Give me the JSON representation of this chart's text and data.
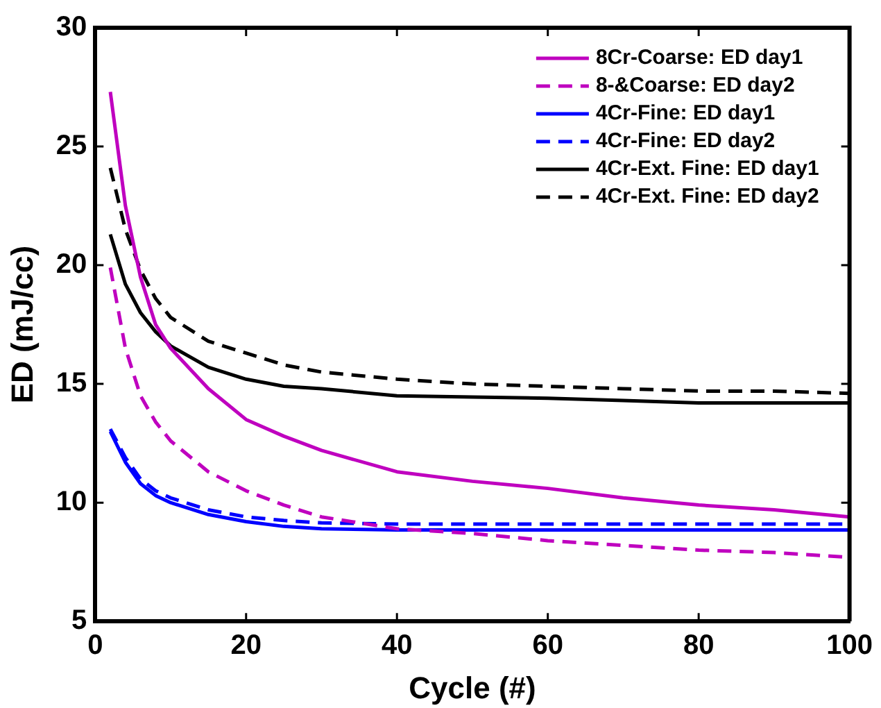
{
  "chart_data": {
    "type": "line",
    "xlabel": "Cycle (#)",
    "ylabel": "ED (mJ/cc)",
    "x": [
      2,
      4,
      6,
      8,
      10,
      15,
      20,
      25,
      30,
      40,
      50,
      60,
      70,
      80,
      90,
      100
    ],
    "series": [
      {
        "name": "8Cr-Coarse: ED day1",
        "color": "#bf00bf",
        "line_style": "solid",
        "values": [
          27.3,
          22.5,
          19.5,
          17.5,
          16.5,
          14.8,
          13.5,
          12.8,
          12.2,
          11.3,
          10.9,
          10.6,
          10.2,
          9.9,
          9.7,
          9.4
        ]
      },
      {
        "name": "8-&Coarse: ED day2",
        "color": "#bf00bf",
        "line_style": "dashed",
        "values": [
          19.9,
          16.5,
          14.5,
          13.4,
          12.6,
          11.3,
          10.5,
          9.9,
          9.4,
          8.9,
          8.7,
          8.4,
          8.2,
          8.0,
          7.9,
          7.7
        ]
      },
      {
        "name": "4Cr-Fine: ED day1",
        "color": "#0000ff",
        "line_style": "solid",
        "values": [
          13.0,
          11.7,
          10.8,
          10.3,
          10.0,
          9.5,
          9.2,
          9.0,
          8.9,
          8.85,
          8.85,
          8.85,
          8.85,
          8.85,
          8.85,
          8.85
        ]
      },
      {
        "name": "4Cr-Fine: ED day2",
        "color": "#0000ff",
        "line_style": "dashed",
        "values": [
          13.1,
          11.9,
          11.0,
          10.5,
          10.2,
          9.7,
          9.4,
          9.25,
          9.15,
          9.1,
          9.1,
          9.1,
          9.1,
          9.1,
          9.1,
          9.1
        ]
      },
      {
        "name": "4Cr-Ext. Fine: ED day1",
        "color": "#000000",
        "line_style": "solid",
        "values": [
          21.3,
          19.2,
          18.0,
          17.2,
          16.6,
          15.7,
          15.2,
          14.9,
          14.8,
          14.5,
          14.45,
          14.4,
          14.3,
          14.2,
          14.2,
          14.2
        ]
      },
      {
        "name": "4Cr-Ext. Fine: ED day2",
        "color": "#000000",
        "line_style": "dashed",
        "values": [
          24.1,
          21.5,
          19.8,
          18.6,
          17.8,
          16.8,
          16.3,
          15.8,
          15.5,
          15.2,
          15.0,
          14.9,
          14.8,
          14.7,
          14.7,
          14.6
        ]
      }
    ],
    "xlim": [
      0,
      100
    ],
    "xticks": [
      0,
      20,
      40,
      60,
      80,
      100
    ],
    "ylim": [
      5,
      30
    ],
    "yticks": [
      5,
      10,
      15,
      20,
      25,
      30
    ],
    "grid": false,
    "legend": "top right",
    "marker": "none"
  }
}
